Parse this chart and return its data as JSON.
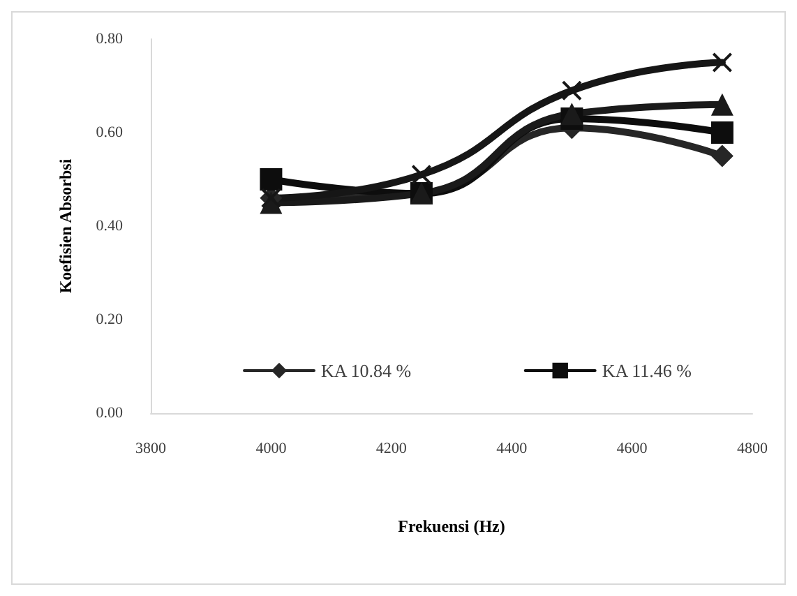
{
  "chart_data": {
    "type": "line",
    "xlabel": "Frekuensi (Hz)",
    "ylabel": "Koefisien Absorbsi",
    "x": [
      4000,
      4250,
      4500,
      4750
    ],
    "xlim": [
      3800,
      4800
    ],
    "xticks": [
      3800,
      4000,
      4200,
      4400,
      4600,
      4800
    ],
    "ylim": [
      0,
      0.8
    ],
    "yticks": [
      {
        "value": 0,
        "label": "0.00"
      },
      {
        "value": 0.2,
        "label": "0.20"
      },
      {
        "value": 0.4,
        "label": "0.40"
      },
      {
        "value": 0.6,
        "label": "0.60"
      },
      {
        "value": 0.8,
        "label": "0.80"
      }
    ],
    "grid": false,
    "legend": "bottom",
    "series": [
      {
        "name": "KA 10.84 %",
        "color": "#262626",
        "marker": "diamond",
        "values": [
          0.46,
          0.47,
          0.61,
          0.55
        ]
      },
      {
        "name": "KA 11.46 %",
        "color": "#0d0d0d",
        "marker": "square",
        "values": [
          0.5,
          0.47,
          0.63,
          0.6
        ]
      },
      {
        "color": "#1a1a1a",
        "marker": "triangle",
        "values": [
          0.45,
          0.47,
          0.64,
          0.66
        ]
      },
      {
        "color": "#161616",
        "marker": "cross",
        "values": [
          0.46,
          0.51,
          0.69,
          0.75
        ]
      }
    ]
  }
}
